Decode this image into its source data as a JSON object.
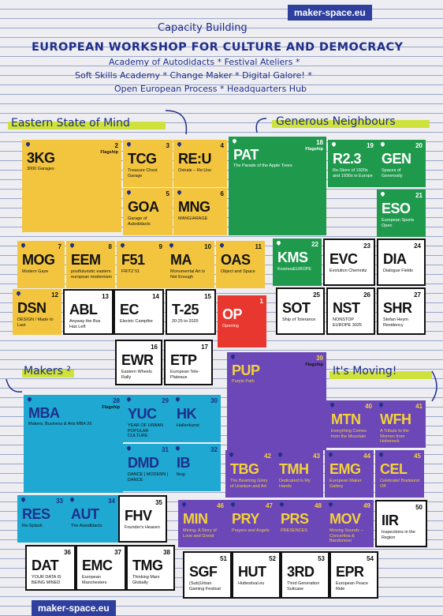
{
  "badges": {
    "top": "maker-space.eu",
    "bottom": "maker-space.eu"
  },
  "header": {
    "kicker": "Capacity Building",
    "title": "EUROPEAN WORKSHOP FOR CULTURE AND DEMOCRACY",
    "line1": "Academy of Autodidacts * Festival Ateliers *",
    "line2": "Soft Skills Academy * Change Maker * Digital Galore! *",
    "line3": "Open European Process * Headquarters Hub"
  },
  "sections": {
    "eastern": "Eastern State of Mind",
    "generous": "Generous Neighbours",
    "makers": "Makers ²",
    "moving": "It's Moving!"
  },
  "colors": {
    "yellow": "#f3c53e",
    "green": "#1f9a4d",
    "purple": "#6b47b8",
    "cyan": "#1ea8d2",
    "red": "#e8372e",
    "ink": "#1f2e8a"
  },
  "tiles": [
    {
      "code": "3KG",
      "num": "2",
      "flag": "Flagship",
      "desc": "3000 Garages"
    },
    {
      "code": "TCG",
      "num": "3",
      "desc": "Treasure Chest Garage"
    },
    {
      "code": "RE:U",
      "num": "4",
      "desc": "Ostrale – Re:Use"
    },
    {
      "code": "GOA",
      "num": "5",
      "desc": "Garage of Autodidacts"
    },
    {
      "code": "MNG",
      "num": "6",
      "desc": "MANG/ARAGE"
    },
    {
      "code": "MOG",
      "num": "7",
      "desc": "Modern Gaze"
    },
    {
      "code": "EEM",
      "num": "8",
      "desc": "postfuturistic eastern european modernism"
    },
    {
      "code": "F51",
      "num": "9",
      "desc": "FRITZ 51"
    },
    {
      "code": "MA",
      "num": "10",
      "desc": "Monumental Art is Not Enough"
    },
    {
      "code": "OAS",
      "num": "11",
      "desc": "Object and Space"
    },
    {
      "code": "DSN",
      "num": "12",
      "desc": "DESIGN / Made to Last"
    },
    {
      "code": "ABL",
      "num": "13",
      "desc": "Anyway the Bus Has Left"
    },
    {
      "code": "EC",
      "num": "14",
      "desc": "Electric Campfire"
    },
    {
      "code": "T-25",
      "num": "15",
      "desc": "20:25 to 2025"
    },
    {
      "code": "OP",
      "num": "1",
      "desc": "Opening"
    },
    {
      "code": "EWR",
      "num": "16",
      "desc": "Eastern Wheels Rally"
    },
    {
      "code": "ETP",
      "num": "17",
      "desc": "European Tele-Plateaus"
    },
    {
      "code": "PAT",
      "num": "18",
      "flag": "Flagship",
      "desc": "The Parade of the Apple Trees"
    },
    {
      "code": "R2.3",
      "num": "19",
      "desc": "Re-Store of 1920s and 1930s in Europe"
    },
    {
      "code": "GEN",
      "num": "20",
      "desc": "Spaces of Generosity"
    },
    {
      "code": "ESO",
      "num": "21",
      "desc": "European Sports Open"
    },
    {
      "code": "KMS",
      "num": "22",
      "desc": "KosmosEUROPE"
    },
    {
      "code": "EVC",
      "num": "23",
      "desc": "Evolution Chemnitz"
    },
    {
      "code": "DIA",
      "num": "24",
      "desc": "Dialogue Fields"
    },
    {
      "code": "SOT",
      "num": "25",
      "desc": "Ship of Tolerance"
    },
    {
      "code": "NST",
      "num": "26",
      "desc": "NONSTOP EUROPE 3025"
    },
    {
      "code": "SHR",
      "num": "27",
      "desc": "Stefan Heym Residency"
    },
    {
      "code": "MBA",
      "num": "28",
      "flag": "Flagship",
      "desc": "Makers, Business & Arts MBA 26"
    },
    {
      "code": "YUC",
      "num": "29",
      "desc": "YEAR OF URBAN POPULAR CULTURE"
    },
    {
      "code": "HK",
      "num": "30",
      "desc": "Hallenkunst"
    },
    {
      "code": "DMD",
      "num": "31",
      "desc": "DANCE | MODERN | DANCE"
    },
    {
      "code": "IB",
      "num": "32",
      "desc": "Ibug"
    },
    {
      "code": "RES",
      "num": "33",
      "desc": "Re-Splash"
    },
    {
      "code": "AUT",
      "num": "34",
      "desc": "The Autodidacts"
    },
    {
      "code": "FHV",
      "num": "35",
      "desc": "Founder's Heaven"
    },
    {
      "code": "DAT",
      "num": "36",
      "desc": "YOUR DATA IS BEING MINED"
    },
    {
      "code": "EMC",
      "num": "37",
      "desc": "European Manchesters"
    },
    {
      "code": "TMG",
      "num": "38",
      "desc": "Thinking Marx Globally"
    },
    {
      "code": "PUP",
      "num": "39",
      "flag": "Flagship",
      "desc": "Purple Path"
    },
    {
      "code": "MTN",
      "num": "40",
      "desc": "Everything Comes from the Mountain"
    },
    {
      "code": "WFH",
      "num": "41",
      "desc": "A Tribute to the Women from Hoheneck"
    },
    {
      "code": "TBG",
      "num": "42",
      "desc": "The Beaming Glory of Uranium and Art"
    },
    {
      "code": "TMH",
      "num": "43",
      "desc": "Dedicated to My Hands"
    },
    {
      "code": "EMG",
      "num": "44",
      "desc": "European Maker Gallery"
    },
    {
      "code": "CEL",
      "num": "45",
      "desc": "Celebrate! Bratwurst Off"
    },
    {
      "code": "MIN",
      "num": "46",
      "desc": "Mining: A Story of Love and Greed"
    },
    {
      "code": "PRY",
      "num": "47",
      "desc": "Prayers and Angels"
    },
    {
      "code": "PRS",
      "num": "48",
      "desc": "PRESENCES"
    },
    {
      "code": "MOV",
      "num": "49",
      "desc": "Moving Sounds – Concertina & Bandoneon"
    },
    {
      "code": "IIR",
      "num": "50",
      "desc": "Inspections in the Region"
    },
    {
      "code": "SGF",
      "num": "51",
      "desc": "(Sub)Urban Gaming Festival"
    },
    {
      "code": "HUT",
      "num": "52",
      "desc": "Huttestival.eu"
    },
    {
      "code": "3RD",
      "num": "53",
      "desc": "Third Generation Suitcase"
    },
    {
      "code": "EPR",
      "num": "54",
      "desc": "European Peace Ride"
    }
  ]
}
